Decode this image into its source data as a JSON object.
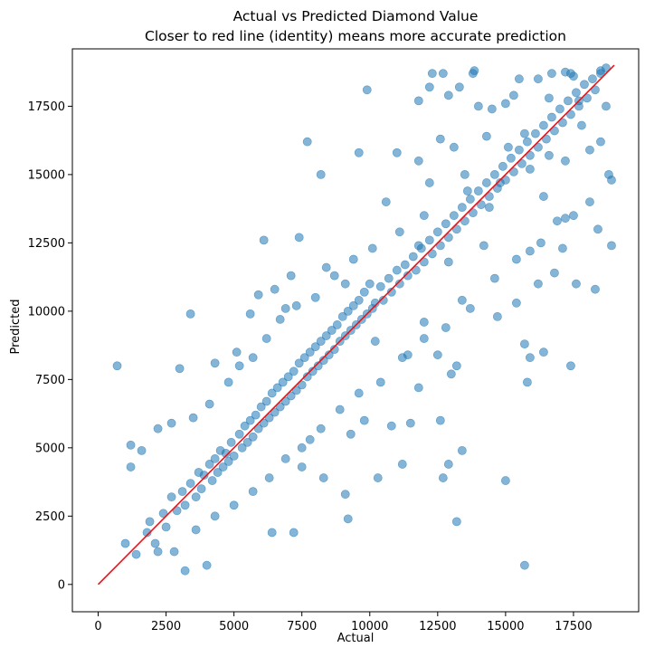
{
  "chart_data": {
    "type": "scatter",
    "title": "Actual vs Predicted Diamond Value",
    "subtitle": "Closer to red line (identity) means more accurate prediction",
    "xlabel": "Actual",
    "ylabel": "Predicted",
    "xlim": [
      -950,
      19900
    ],
    "ylim": [
      -1000,
      19600
    ],
    "xticks": [
      0,
      2500,
      5000,
      7500,
      10000,
      12500,
      15000,
      17500
    ],
    "yticks": [
      0,
      2500,
      5000,
      7500,
      10000,
      12500,
      15000,
      17500
    ],
    "grid": false,
    "legend": "none",
    "colors": {
      "points": "#1f77b4",
      "identity_line": "#e8141a",
      "axes": "#000000"
    },
    "identity_line": {
      "x": [
        0,
        19000
      ],
      "y": [
        0,
        19000
      ]
    },
    "series": [
      {
        "points": [
          [
            13800,
            18700
          ],
          [
            13850,
            18800
          ],
          [
            16200,
            18500
          ],
          [
            16700,
            18700
          ],
          [
            17200,
            18750
          ],
          [
            17400,
            18700
          ],
          [
            18500,
            18800
          ],
          [
            18700,
            18900
          ],
          [
            12300,
            18700
          ],
          [
            12700,
            18700
          ],
          [
            15500,
            18500
          ],
          [
            17500,
            18600
          ],
          [
            9900,
            18100
          ],
          [
            11800,
            17700
          ],
          [
            12200,
            18200
          ],
          [
            12900,
            17900
          ],
          [
            13300,
            18200
          ],
          [
            14000,
            17500
          ],
          [
            14500,
            17400
          ],
          [
            15000,
            17600
          ],
          [
            15300,
            17900
          ],
          [
            16600,
            17800
          ],
          [
            17700,
            17700
          ],
          [
            18700,
            17500
          ],
          [
            7700,
            16200
          ],
          [
            8200,
            15000
          ],
          [
            9600,
            15800
          ],
          [
            11000,
            15800
          ],
          [
            11800,
            15500
          ],
          [
            12200,
            14700
          ],
          [
            12600,
            16300
          ],
          [
            13100,
            16000
          ],
          [
            14300,
            16400
          ],
          [
            15100,
            16000
          ],
          [
            15700,
            16500
          ],
          [
            16600,
            15700
          ],
          [
            17800,
            16800
          ],
          [
            18500,
            16200
          ],
          [
            13500,
            15000
          ],
          [
            14800,
            14700
          ],
          [
            15900,
            15200
          ],
          [
            16400,
            14200
          ],
          [
            17200,
            15500
          ],
          [
            18100,
            15900
          ],
          [
            18900,
            14800
          ],
          [
            12000,
            13500
          ],
          [
            13600,
            14400
          ],
          [
            14400,
            13800
          ],
          [
            16900,
            13300
          ],
          [
            17500,
            13500
          ],
          [
            18400,
            13000
          ],
          [
            18900,
            12400
          ],
          [
            6100,
            12600
          ],
          [
            10600,
            14000
          ],
          [
            11100,
            12900
          ],
          [
            11800,
            12400
          ],
          [
            12900,
            11800
          ],
          [
            14200,
            12400
          ],
          [
            15900,
            12200
          ],
          [
            17100,
            12300
          ],
          [
            16200,
            11000
          ],
          [
            16800,
            11400
          ],
          [
            17600,
            11000
          ],
          [
            18300,
            10800
          ],
          [
            13400,
            10400
          ],
          [
            14700,
            9800
          ],
          [
            15400,
            10300
          ],
          [
            12000,
            9600
          ],
          [
            12500,
            8400
          ],
          [
            13200,
            8000
          ],
          [
            15700,
            8800
          ],
          [
            15900,
            8300
          ],
          [
            16400,
            8500
          ],
          [
            17400,
            8000
          ],
          [
            15800,
            7400
          ],
          [
            13000,
            7700
          ],
          [
            3400,
            9900
          ],
          [
            700,
            8000
          ],
          [
            3000,
            7900
          ],
          [
            5600,
            9900
          ],
          [
            7100,
            11300
          ],
          [
            7400,
            12700
          ],
          [
            8400,
            11600
          ],
          [
            9100,
            11000
          ],
          [
            10200,
            8900
          ],
          [
            11400,
            8400
          ],
          [
            11800,
            7200
          ],
          [
            9800,
            6000
          ],
          [
            10800,
            5800
          ],
          [
            11500,
            5900
          ],
          [
            12600,
            6000
          ],
          [
            9300,
            5500
          ],
          [
            7800,
            5300
          ],
          [
            7500,
            4300
          ],
          [
            8300,
            3900
          ],
          [
            9100,
            3300
          ],
          [
            10300,
            3900
          ],
          [
            11200,
            4400
          ],
          [
            12700,
            3900
          ],
          [
            12900,
            4400
          ],
          [
            13400,
            4900
          ],
          [
            13200,
            2300
          ],
          [
            15000,
            3800
          ],
          [
            15700,
            700
          ],
          [
            9200,
            2400
          ],
          [
            6400,
            1900
          ],
          [
            7200,
            1900
          ],
          [
            4000,
            700
          ],
          [
            3200,
            500
          ],
          [
            2200,
            1200
          ],
          [
            1200,
            4300
          ],
          [
            1600,
            4900
          ],
          [
            1200,
            5100
          ],
          [
            2200,
            5700
          ],
          [
            2700,
            5900
          ],
          [
            4300,
            8100
          ],
          [
            5100,
            8500
          ],
          [
            5900,
            10600
          ],
          [
            6500,
            10800
          ],
          [
            6900,
            10100
          ],
          [
            1000,
            1500
          ],
          [
            1400,
            1100
          ],
          [
            1800,
            1900
          ],
          [
            1900,
            2300
          ],
          [
            2100,
            1500
          ],
          [
            2400,
            2600
          ],
          [
            2500,
            2100
          ],
          [
            2700,
            3200
          ],
          [
            2900,
            2700
          ],
          [
            3100,
            3400
          ],
          [
            3200,
            2900
          ],
          [
            3400,
            3700
          ],
          [
            3600,
            3200
          ],
          [
            3700,
            4100
          ],
          [
            3800,
            3500
          ],
          [
            3900,
            4000
          ],
          [
            4100,
            4400
          ],
          [
            4200,
            3800
          ],
          [
            4300,
            4600
          ],
          [
            4400,
            4100
          ],
          [
            4500,
            4900
          ],
          [
            4600,
            4300
          ],
          [
            4700,
            4800
          ],
          [
            4800,
            4500
          ],
          [
            4900,
            5200
          ],
          [
            5000,
            4700
          ],
          [
            5200,
            5500
          ],
          [
            5300,
            5000
          ],
          [
            5400,
            5800
          ],
          [
            5500,
            5200
          ],
          [
            5600,
            6000
          ],
          [
            5700,
            5400
          ],
          [
            5800,
            6200
          ],
          [
            5900,
            5700
          ],
          [
            6000,
            6500
          ],
          [
            6100,
            5900
          ],
          [
            6200,
            6700
          ],
          [
            6300,
            6100
          ],
          [
            6400,
            7000
          ],
          [
            6500,
            6300
          ],
          [
            6600,
            7200
          ],
          [
            6700,
            6500
          ],
          [
            6800,
            7400
          ],
          [
            6900,
            6700
          ],
          [
            7000,
            7600
          ],
          [
            7100,
            6900
          ],
          [
            7200,
            7800
          ],
          [
            7300,
            7100
          ],
          [
            7400,
            8100
          ],
          [
            7500,
            7300
          ],
          [
            7600,
            8300
          ],
          [
            7700,
            7600
          ],
          [
            7800,
            8500
          ],
          [
            7900,
            7800
          ],
          [
            8000,
            8700
          ],
          [
            8100,
            8000
          ],
          [
            8200,
            8900
          ],
          [
            8300,
            8200
          ],
          [
            8400,
            9100
          ],
          [
            8500,
            8400
          ],
          [
            8600,
            9300
          ],
          [
            8700,
            8600
          ],
          [
            8800,
            9500
          ],
          [
            8900,
            8900
          ],
          [
            9000,
            9800
          ],
          [
            9100,
            9100
          ],
          [
            9200,
            10000
          ],
          [
            9300,
            9300
          ],
          [
            9400,
            10200
          ],
          [
            9500,
            9500
          ],
          [
            9600,
            10400
          ],
          [
            9700,
            9700
          ],
          [
            9800,
            10700
          ],
          [
            9900,
            9900
          ],
          [
            10000,
            11000
          ],
          [
            10100,
            10100
          ],
          [
            10200,
            10300
          ],
          [
            10400,
            10900
          ],
          [
            10500,
            10400
          ],
          [
            10700,
            11200
          ],
          [
            10800,
            10700
          ],
          [
            11000,
            11500
          ],
          [
            11100,
            11000
          ],
          [
            11300,
            11700
          ],
          [
            11400,
            11300
          ],
          [
            11600,
            12000
          ],
          [
            11700,
            11500
          ],
          [
            11900,
            12300
          ],
          [
            12000,
            11800
          ],
          [
            12200,
            12600
          ],
          [
            12300,
            12100
          ],
          [
            12500,
            12900
          ],
          [
            12600,
            12400
          ],
          [
            12800,
            13200
          ],
          [
            12900,
            12700
          ],
          [
            13100,
            13500
          ],
          [
            13200,
            13000
          ],
          [
            13400,
            13800
          ],
          [
            13500,
            13300
          ],
          [
            13700,
            14100
          ],
          [
            13800,
            13600
          ],
          [
            14000,
            14400
          ],
          [
            14100,
            13900
          ],
          [
            14300,
            14700
          ],
          [
            14400,
            14200
          ],
          [
            14600,
            15000
          ],
          [
            14700,
            14500
          ],
          [
            14900,
            15300
          ],
          [
            15000,
            14800
          ],
          [
            15200,
            15600
          ],
          [
            15300,
            15100
          ],
          [
            15500,
            15900
          ],
          [
            15600,
            15400
          ],
          [
            15800,
            16200
          ],
          [
            15900,
            15700
          ],
          [
            16100,
            16500
          ],
          [
            16200,
            16000
          ],
          [
            16400,
            16800
          ],
          [
            16500,
            16300
          ],
          [
            16700,
            17100
          ],
          [
            16800,
            16600
          ],
          [
            17000,
            17400
          ],
          [
            17100,
            16900
          ],
          [
            17300,
            17700
          ],
          [
            17400,
            17200
          ],
          [
            17600,
            18000
          ],
          [
            17700,
            17500
          ],
          [
            17900,
            18300
          ],
          [
            18000,
            17800
          ],
          [
            18200,
            18500
          ],
          [
            18300,
            18100
          ],
          [
            18500,
            18700
          ],
          [
            3500,
            6100
          ],
          [
            4100,
            6600
          ],
          [
            4800,
            7400
          ],
          [
            5200,
            8000
          ],
          [
            5700,
            8300
          ],
          [
            6200,
            9000
          ],
          [
            6700,
            9700
          ],
          [
            7300,
            10200
          ],
          [
            8000,
            10500
          ],
          [
            8700,
            11300
          ],
          [
            9400,
            11900
          ],
          [
            10100,
            12300
          ],
          [
            2800,
            1200
          ],
          [
            3600,
            2000
          ],
          [
            4300,
            2500
          ],
          [
            5000,
            2900
          ],
          [
            5700,
            3400
          ],
          [
            6300,
            3900
          ],
          [
            6900,
            4600
          ],
          [
            7500,
            5000
          ],
          [
            8200,
            5700
          ],
          [
            8900,
            6400
          ],
          [
            9600,
            7000
          ],
          [
            10400,
            7400
          ],
          [
            11200,
            8300
          ],
          [
            12000,
            9000
          ],
          [
            12800,
            9400
          ],
          [
            13700,
            10100
          ],
          [
            14600,
            11200
          ],
          [
            15400,
            11900
          ],
          [
            16300,
            12500
          ],
          [
            17200,
            13400
          ],
          [
            18100,
            14000
          ],
          [
            18800,
            15000
          ]
        ]
      }
    ]
  }
}
